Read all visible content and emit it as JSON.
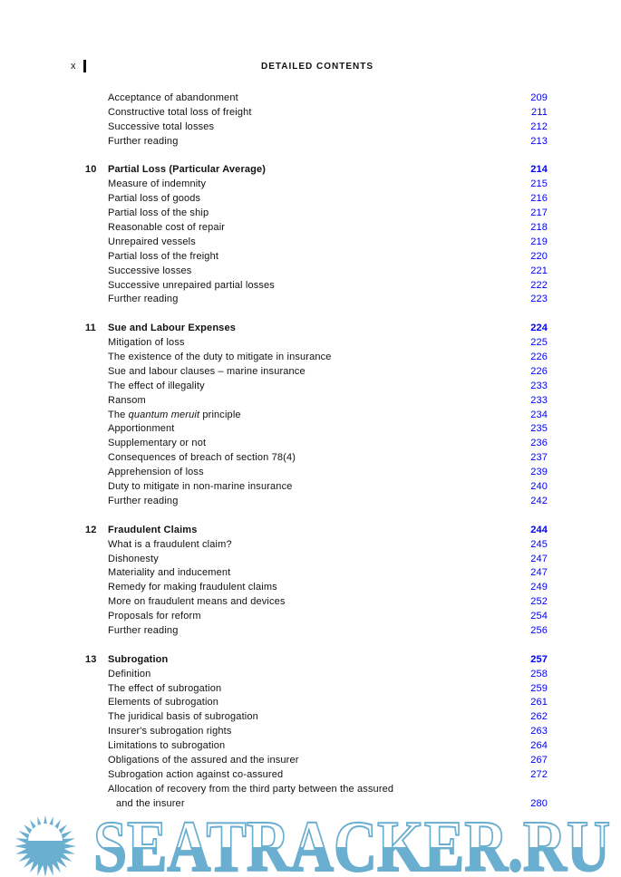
{
  "header": {
    "folio": "x",
    "running_title": "DETAILED CONTENTS"
  },
  "rows": [
    {
      "type": "item",
      "title": "Acceptance of abandonment",
      "page": "209"
    },
    {
      "type": "item",
      "title": "Constructive total loss of freight",
      "page": "211"
    },
    {
      "type": "item",
      "title": "Successive total losses",
      "page": "212"
    },
    {
      "type": "item",
      "title": "Further reading",
      "page": "213"
    },
    {
      "type": "blank"
    },
    {
      "type": "chapter",
      "num": "10",
      "title": "Partial Loss (Particular Average)",
      "page": "214"
    },
    {
      "type": "item",
      "title": "Measure of indemnity",
      "page": "215"
    },
    {
      "type": "item",
      "title": "Partial loss of goods",
      "page": "216"
    },
    {
      "type": "item",
      "title": "Partial loss of the ship",
      "page": "217"
    },
    {
      "type": "item",
      "title": "Reasonable cost of repair",
      "page": "218"
    },
    {
      "type": "item",
      "title": "Unrepaired vessels",
      "page": "219"
    },
    {
      "type": "item",
      "title": "Partial loss of the freight",
      "page": "220"
    },
    {
      "type": "item",
      "title": "Successive losses",
      "page": "221"
    },
    {
      "type": "item",
      "title": "Successive unrepaired partial losses",
      "page": "222"
    },
    {
      "type": "item",
      "title": "Further reading",
      "page": "223"
    },
    {
      "type": "blank"
    },
    {
      "type": "chapter",
      "num": "11",
      "title": "Sue and Labour Expenses",
      "page": "224"
    },
    {
      "type": "item",
      "title": "Mitigation of loss",
      "page": "225"
    },
    {
      "type": "item",
      "title": "The existence of the duty to mitigate in insurance",
      "page": "226"
    },
    {
      "type": "item",
      "title": "Sue and labour clauses – marine insurance",
      "page": "226"
    },
    {
      "type": "item",
      "title": "The effect of illegality",
      "page": "233"
    },
    {
      "type": "item",
      "title": "Ransom",
      "page": "233"
    },
    {
      "type": "item",
      "title_pre": "The ",
      "title_em": "quantum meruit",
      "title_post": " principle",
      "page": "234"
    },
    {
      "type": "item",
      "title": "Apportionment",
      "page": "235"
    },
    {
      "type": "item",
      "title": "Supplementary or not",
      "page": "236"
    },
    {
      "type": "item",
      "title": "Consequences of breach of section 78(4)",
      "page": "237"
    },
    {
      "type": "item",
      "title": "Apprehension of loss",
      "page": "239"
    },
    {
      "type": "item",
      "title": "Duty to mitigate in non-marine insurance",
      "page": "240"
    },
    {
      "type": "item",
      "title": "Further reading",
      "page": "242"
    },
    {
      "type": "blank"
    },
    {
      "type": "chapter",
      "num": "12",
      "title": "Fraudulent Claims",
      "page": "244"
    },
    {
      "type": "item",
      "title": "What is a fraudulent claim?",
      "page": "245"
    },
    {
      "type": "item",
      "title": "Dishonesty",
      "page": "247"
    },
    {
      "type": "item",
      "title": "Materiality and inducement",
      "page": "247"
    },
    {
      "type": "item",
      "title": "Remedy for making fraudulent claims",
      "page": "249"
    },
    {
      "type": "item",
      "title": "More on fraudulent means and devices",
      "page": "252"
    },
    {
      "type": "item",
      "title": "Proposals for reform",
      "page": "254"
    },
    {
      "type": "item",
      "title": "Further reading",
      "page": "256"
    },
    {
      "type": "blank"
    },
    {
      "type": "chapter",
      "num": "13",
      "title": "Subrogation",
      "page": "257"
    },
    {
      "type": "item",
      "title": "Definition",
      "page": "258"
    },
    {
      "type": "item",
      "title": "The effect of subrogation",
      "page": "259"
    },
    {
      "type": "item",
      "title": "Elements of subrogation",
      "page": "261"
    },
    {
      "type": "item",
      "title": "The juridical basis of subrogation",
      "page": "262"
    },
    {
      "type": "item",
      "title": "Insurer's subrogation rights",
      "page": "263"
    },
    {
      "type": "item",
      "title": "Limitations to subrogation",
      "page": "264"
    },
    {
      "type": "item",
      "title": "Obligations of the assured and the insurer",
      "page": "267"
    },
    {
      "type": "item",
      "title": "Subrogation action against co-assured",
      "page": "272"
    },
    {
      "type": "item",
      "title": "Allocation of recovery from the third party between the assured"
    },
    {
      "type": "cont",
      "title": "and the insurer",
      "page": "280"
    }
  ],
  "watermark": {
    "text": "SEATRACKER.RU",
    "color": "#6aaed0",
    "icon": "sun-over-sea-logo"
  }
}
